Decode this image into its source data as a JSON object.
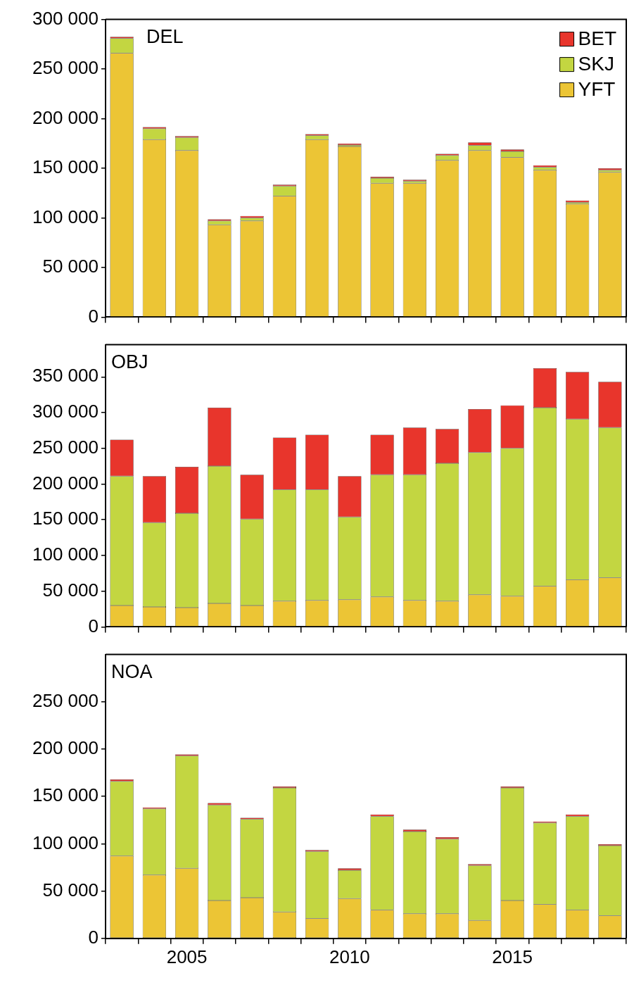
{
  "chart_data": [
    {
      "type": "bar",
      "title": "DEL",
      "stacked": true,
      "legend": "top right",
      "tick_labels": "y",
      "categories": [
        null,
        null,
        "2005",
        null,
        null,
        null,
        null,
        "2010",
        null,
        null,
        null,
        null,
        "2015",
        null,
        null,
        null
      ],
      "ylim": [
        0,
        300000
      ],
      "yticks": [
        {
          "value": 0,
          "label": "0"
        },
        {
          "value": 50000,
          "label": "50 000"
        },
        {
          "value": 100000,
          "label": "100 000"
        },
        {
          "value": 150000,
          "label": "150 000"
        },
        {
          "value": 200000,
          "label": "200 000"
        },
        {
          "value": 250000,
          "label": "250 000"
        },
        {
          "value": 300000,
          "label": "300 000"
        }
      ],
      "series": [
        {
          "name": "YFT",
          "color": "#ecc535",
          "values": [
            266000,
            179000,
            168000,
            93000,
            97000,
            122000,
            179000,
            172000,
            135000,
            135000,
            158000,
            168000,
            161000,
            148000,
            114000,
            146000
          ]
        },
        {
          "name": "SKJ",
          "color": "#c3d641",
          "values": [
            15000,
            11000,
            13000,
            4000,
            3000,
            10000,
            4000,
            1500,
            5000,
            2000,
            5000,
            5000,
            6000,
            3000,
            1500,
            2000
          ]
        },
        {
          "name": "BET",
          "color": "#e8352c",
          "values": [
            1500,
            1500,
            1500,
            1500,
            2000,
            1500,
            1500,
            1500,
            1500,
            1500,
            1500,
            3000,
            2000,
            2000,
            2000,
            2000
          ]
        }
      ]
    },
    {
      "type": "bar",
      "title": "OBJ",
      "stacked": true,
      "tick_labels": "y",
      "categories": [
        null,
        null,
        "2005",
        null,
        null,
        null,
        null,
        "2010",
        null,
        null,
        null,
        null,
        "2015",
        null,
        null,
        null
      ],
      "ylim": [
        0,
        395000
      ],
      "yticks": [
        {
          "value": 0,
          "label": "0"
        },
        {
          "value": 50000,
          "label": "50 000"
        },
        {
          "value": 100000,
          "label": "100 000"
        },
        {
          "value": 150000,
          "label": "150 000"
        },
        {
          "value": 200000,
          "label": "200 000"
        },
        {
          "value": 250000,
          "label": "250 000"
        },
        {
          "value": 300000,
          "label": "300 000"
        },
        {
          "value": 350000,
          "label": "350 000"
        }
      ],
      "series": [
        {
          "color": "#ecc535",
          "values": [
            30000,
            28000,
            27000,
            33000,
            30000,
            36000,
            37000,
            38000,
            42000,
            37000,
            36000,
            45000,
            43000,
            57000,
            66000,
            69000
          ]
        },
        {
          "color": "#c3d641",
          "values": [
            181000,
            118000,
            132000,
            192000,
            121000,
            156000,
            155000,
            116000,
            171000,
            176000,
            193000,
            199000,
            207000,
            250000,
            225000,
            210000
          ]
        },
        {
          "color": "#e8352c",
          "values": [
            51000,
            65000,
            65000,
            82000,
            62000,
            73000,
            77000,
            57000,
            56000,
            66000,
            48000,
            61000,
            60000,
            55000,
            66000,
            64000
          ]
        }
      ]
    },
    {
      "type": "bar",
      "title": "NOA",
      "stacked": true,
      "categories": [
        null,
        null,
        "2005",
        null,
        null,
        null,
        null,
        "2010",
        null,
        null,
        null,
        null,
        "2015",
        null,
        null,
        null
      ],
      "ylim": [
        0,
        300000
      ],
      "yticks": [
        {
          "value": 0,
          "label": "0"
        },
        {
          "value": 50000,
          "label": "50 000"
        },
        {
          "value": 100000,
          "label": "100 000"
        },
        {
          "value": 150000,
          "label": "150 000"
        },
        {
          "value": 200000,
          "label": "200 000"
        },
        {
          "value": 250000,
          "label": "250 000"
        }
      ],
      "series": [
        {
          "color": "#ecc535",
          "values": [
            87000,
            67000,
            74000,
            40000,
            43000,
            28000,
            21000,
            42000,
            30000,
            26000,
            26000,
            19000,
            40000,
            36000,
            30000,
            24000
          ]
        },
        {
          "color": "#c3d641",
          "values": [
            79000,
            70000,
            119000,
            101000,
            83000,
            131000,
            71000,
            30000,
            99000,
            87000,
            79000,
            58000,
            119000,
            86000,
            99000,
            74000
          ]
        },
        {
          "color": "#e8352c",
          "values": [
            2000,
            1500,
            1500,
            2000,
            1500,
            1500,
            1500,
            2000,
            2000,
            2000,
            2000,
            1500,
            1500,
            1500,
            2000,
            1500
          ]
        }
      ]
    }
  ]
}
